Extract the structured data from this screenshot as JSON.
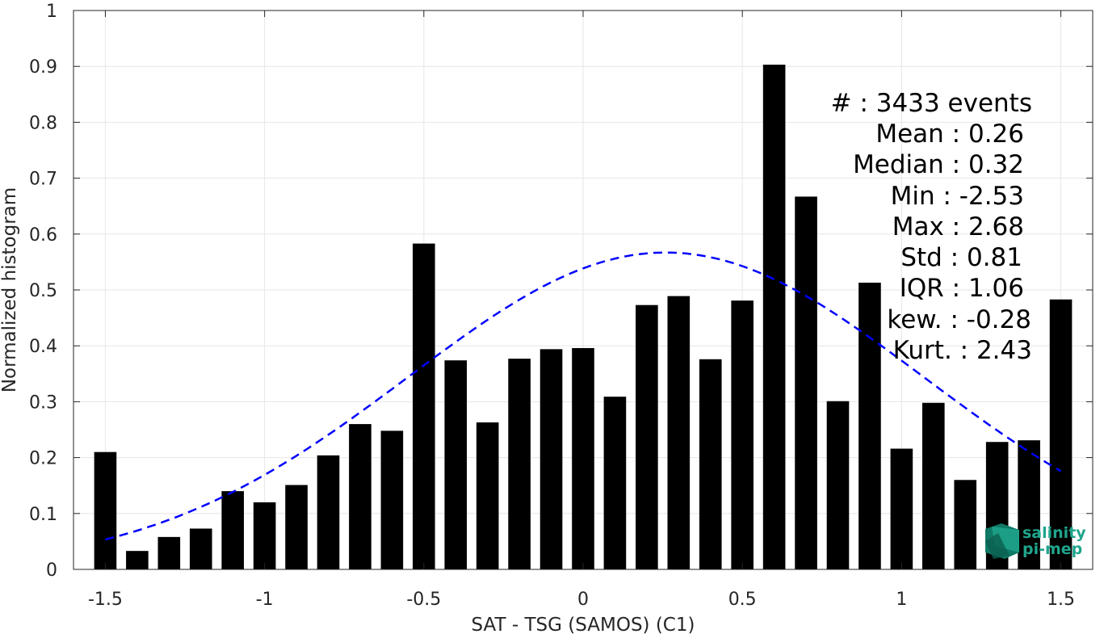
{
  "chart_data": {
    "type": "bar",
    "xlabel": "SAT - TSG (SAMOS) (C1)",
    "ylabel": "Normalized histogram",
    "xlim": [
      -1.6,
      1.6
    ],
    "ylim": [
      0,
      1
    ],
    "xticks": [
      -1.5,
      -1,
      -0.5,
      0,
      0.5,
      1,
      1.5
    ],
    "xtick_labels": [
      "-1.5",
      "-1",
      "-0.5",
      "0",
      "0.5",
      "1",
      "1.5"
    ],
    "yticks": [
      0,
      0.1,
      0.2,
      0.3,
      0.4,
      0.5,
      0.6,
      0.7,
      0.8,
      0.9,
      1
    ],
    "ytick_labels": [
      "0",
      "0.1",
      "0.2",
      "0.3",
      "0.4",
      "0.5",
      "0.6",
      "0.7",
      "0.8",
      "0.9",
      "1"
    ],
    "grid": true,
    "bar_color": "#000000",
    "bar_width": 0.07,
    "bars": [
      {
        "x": -1.5,
        "y": 0.21
      },
      {
        "x": -1.4,
        "y": 0.033
      },
      {
        "x": -1.3,
        "y": 0.058
      },
      {
        "x": -1.2,
        "y": 0.073
      },
      {
        "x": -1.1,
        "y": 0.14
      },
      {
        "x": -1.0,
        "y": 0.12
      },
      {
        "x": -0.9,
        "y": 0.151
      },
      {
        "x": -0.8,
        "y": 0.204
      },
      {
        "x": -0.7,
        "y": 0.26
      },
      {
        "x": -0.6,
        "y": 0.248
      },
      {
        "x": -0.5,
        "y": 0.583
      },
      {
        "x": -0.4,
        "y": 0.374
      },
      {
        "x": -0.3,
        "y": 0.263
      },
      {
        "x": -0.2,
        "y": 0.377
      },
      {
        "x": -0.1,
        "y": 0.394
      },
      {
        "x": 0.0,
        "y": 0.396
      },
      {
        "x": 0.1,
        "y": 0.309
      },
      {
        "x": 0.2,
        "y": 0.473
      },
      {
        "x": 0.3,
        "y": 0.489
      },
      {
        "x": 0.4,
        "y": 0.376
      },
      {
        "x": 0.5,
        "y": 0.481
      },
      {
        "x": 0.6,
        "y": 0.903
      },
      {
        "x": 0.7,
        "y": 0.667
      },
      {
        "x": 0.8,
        "y": 0.301
      },
      {
        "x": 0.9,
        "y": 0.513
      },
      {
        "x": 1.0,
        "y": 0.216
      },
      {
        "x": 1.1,
        "y": 0.298
      },
      {
        "x": 1.2,
        "y": 0.16
      },
      {
        "x": 1.3,
        "y": 0.228
      },
      {
        "x": 1.4,
        "y": 0.231
      },
      {
        "x": 1.5,
        "y": 0.483
      }
    ],
    "fit_curve": {
      "style": "dashed",
      "color": "#0000ff",
      "peak_y": 0.567,
      "x_range": [
        -1.5,
        1.5
      ]
    },
    "annotations": [
      "#  : 3433 events",
      "Mean : 0.26",
      "Median : 0.32",
      "Min : -2.53",
      "Max : 2.68",
      "Std : 0.81",
      "IQR : 1.06",
      "kew. : -0.28",
      "Kurt. : 2.43"
    ],
    "logo": {
      "line1": "salinity",
      "line2": "pi-mep",
      "color": "#1fa58c"
    }
  }
}
